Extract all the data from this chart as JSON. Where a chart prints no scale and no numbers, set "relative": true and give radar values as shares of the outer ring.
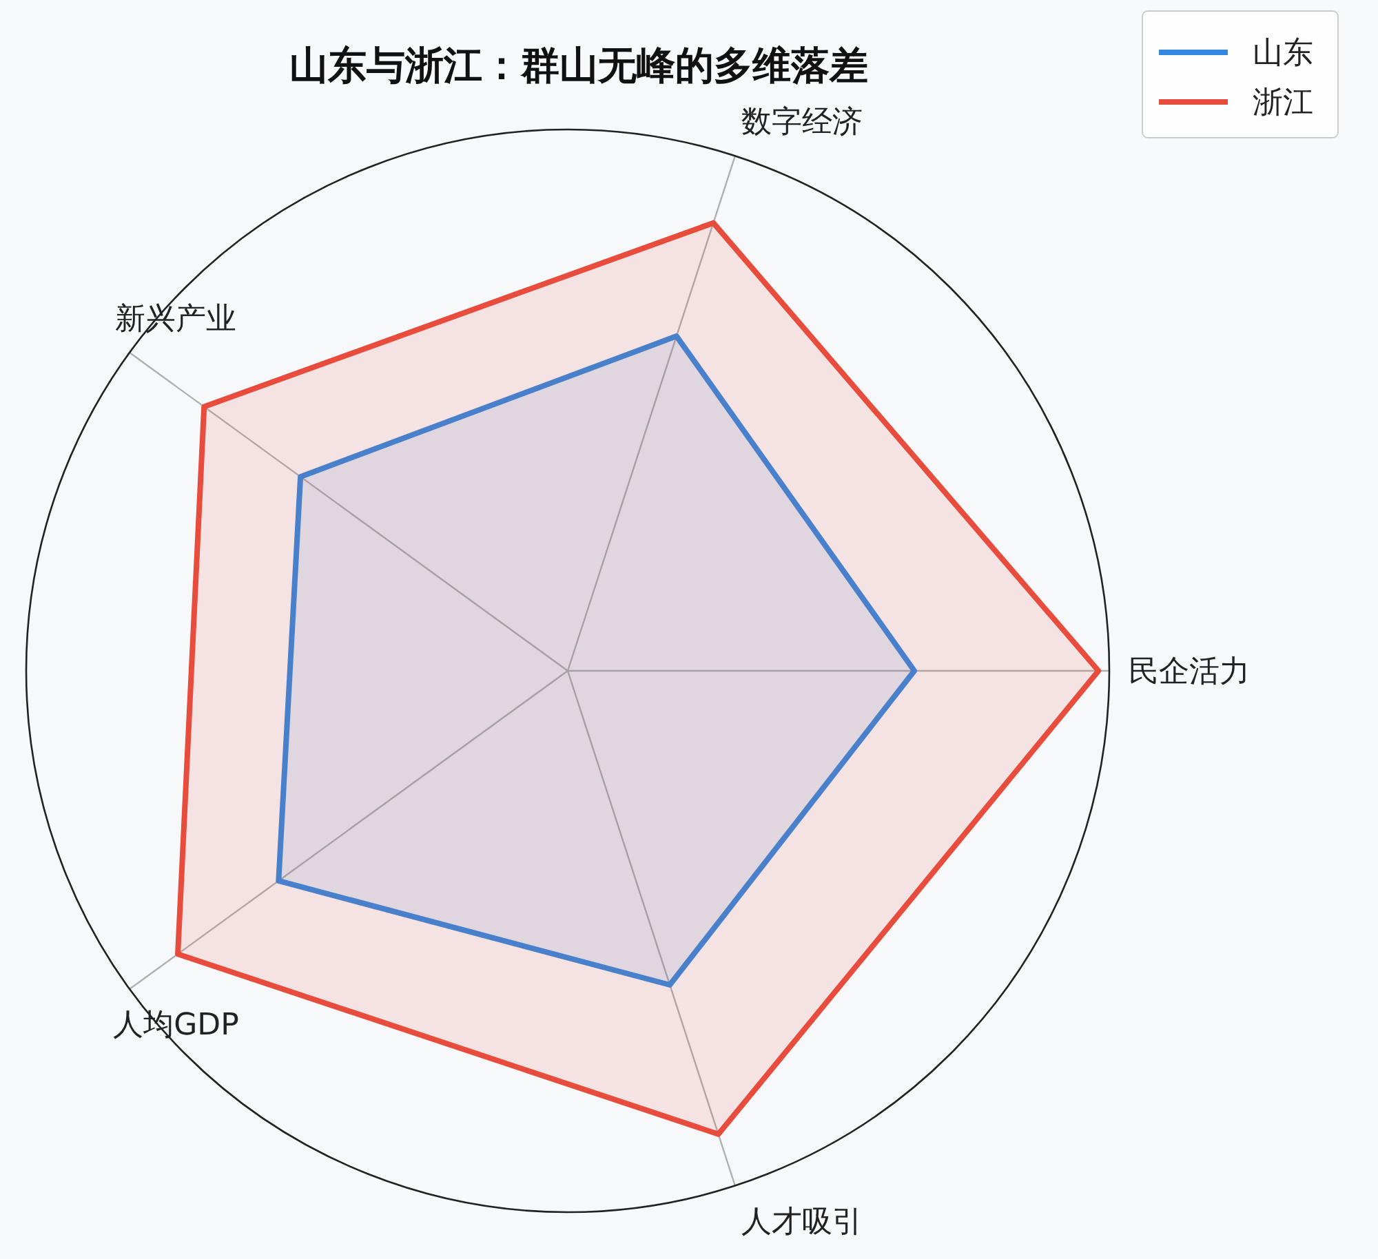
{
  "chart_data": {
    "type": "radar",
    "title": "山东与浙江：群山无峰的多维落差",
    "relative": true,
    "grid": true,
    "legend": "top right",
    "categories": [
      "数字经济",
      "民企活力",
      "人才吸引",
      "人均GDP",
      "新兴产业"
    ],
    "series": [
      {
        "name": "山东",
        "color": "#3388e0",
        "values": [
          0.65,
          0.64,
          0.61,
          0.66,
          0.61
        ]
      },
      {
        "name": "浙江",
        "color": "#e74c3c",
        "values": [
          0.87,
          0.98,
          0.9,
          0.89,
          0.83
        ]
      }
    ]
  }
}
